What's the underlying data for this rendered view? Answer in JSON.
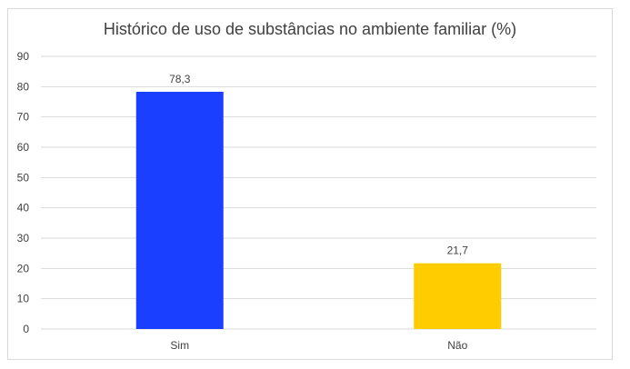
{
  "chart_data": {
    "type": "bar",
    "title": "Histórico de uso de substâncias no ambiente familiar (%)",
    "xlabel": "",
    "ylabel": "",
    "categories": [
      "Sim",
      "Não"
    ],
    "values": [
      78.3,
      21.7
    ],
    "data_labels": [
      "78,3",
      "21,7"
    ],
    "bar_colors": [
      "#1a3fff",
      "#ffcc00"
    ],
    "ylim": [
      0,
      90
    ],
    "yticks": [
      0,
      10,
      20,
      30,
      40,
      50,
      60,
      70,
      80,
      90
    ],
    "grid": true,
    "legend": "none"
  }
}
